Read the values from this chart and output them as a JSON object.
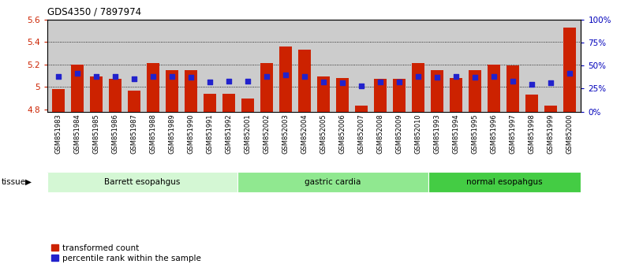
{
  "title": "GDS4350 / 7897974",
  "samples": [
    "GSM851983",
    "GSM851984",
    "GSM851985",
    "GSM851986",
    "GSM851987",
    "GSM851988",
    "GSM851989",
    "GSM851990",
    "GSM851991",
    "GSM851992",
    "GSM852001",
    "GSM852002",
    "GSM852003",
    "GSM852004",
    "GSM852005",
    "GSM852006",
    "GSM852007",
    "GSM852008",
    "GSM852009",
    "GSM852010",
    "GSM851993",
    "GSM851994",
    "GSM851995",
    "GSM851996",
    "GSM851997",
    "GSM851998",
    "GSM851999",
    "GSM852000"
  ],
  "red_bars": [
    4.98,
    5.2,
    5.09,
    5.07,
    4.97,
    5.21,
    5.15,
    5.15,
    4.94,
    4.94,
    4.9,
    5.21,
    5.36,
    5.33,
    5.09,
    5.08,
    4.83,
    5.07,
    5.07,
    5.21,
    5.15,
    5.08,
    5.15,
    5.2,
    5.19,
    4.93,
    4.83,
    5.53
  ],
  "blue_pct": [
    38,
    42,
    38,
    38,
    36,
    38,
    38,
    37,
    32,
    33,
    33,
    38,
    40,
    38,
    32,
    31,
    28,
    32,
    32,
    38,
    37,
    38,
    37,
    38,
    33,
    30,
    31,
    42
  ],
  "groups": [
    {
      "label": "Barrett esopahgus",
      "start": 0,
      "end": 10,
      "color": "#d4f7d4"
    },
    {
      "label": "gastric cardia",
      "start": 10,
      "end": 20,
      "color": "#90e890"
    },
    {
      "label": "normal esopahgus",
      "start": 20,
      "end": 28,
      "color": "#44cc44"
    }
  ],
  "ylim_left": [
    4.78,
    5.6
  ],
  "ylim_right": [
    0,
    100
  ],
  "yticks_left": [
    4.8,
    5.0,
    5.2,
    5.4,
    5.6
  ],
  "yticks_right": [
    0,
    25,
    50,
    75,
    100
  ],
  "ytick_labels_right": [
    "0%",
    "25%",
    "50%",
    "75%",
    "100%"
  ],
  "bar_color": "#cc2200",
  "blue_color": "#2222cc",
  "plot_bg": "#cccccc",
  "legend_red": "transformed count",
  "legend_blue": "percentile rank within the sample"
}
